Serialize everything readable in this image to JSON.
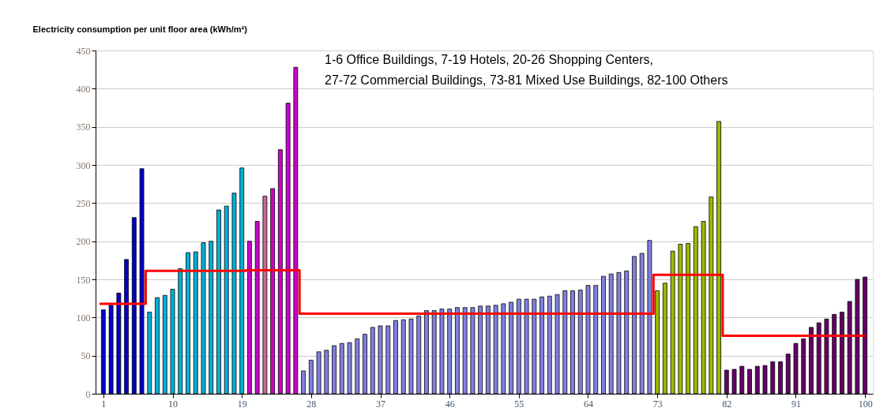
{
  "chart_data": {
    "type": "bar",
    "ylabel": "Electricity consumption per unit floor area (kWh/m²)",
    "annotations": [
      "1-6 Office Buildings, 7-19 Hotels, 20-26 Shopping Centers,",
      "27-72 Commercial Buildings, 73-81 Mixed Use Buildings, 82-100 Others"
    ],
    "x": [
      1,
      2,
      3,
      4,
      5,
      6,
      7,
      8,
      9,
      10,
      11,
      12,
      13,
      14,
      15,
      16,
      17,
      18,
      19,
      20,
      21,
      22,
      23,
      24,
      25,
      26,
      27,
      28,
      29,
      30,
      31,
      32,
      33,
      34,
      35,
      36,
      37,
      38,
      39,
      40,
      41,
      42,
      43,
      44,
      45,
      46,
      47,
      48,
      49,
      50,
      51,
      52,
      53,
      54,
      55,
      56,
      57,
      58,
      59,
      60,
      61,
      62,
      63,
      64,
      65,
      66,
      67,
      68,
      69,
      70,
      71,
      72,
      73,
      74,
      75,
      76,
      77,
      78,
      79,
      80,
      81,
      82,
      83,
      84,
      85,
      86,
      87,
      88,
      89,
      90,
      91,
      92,
      93,
      94,
      95,
      96,
      97,
      98,
      99,
      100
    ],
    "xlim": [
      0.5,
      100.5
    ],
    "xticks": [
      1,
      10,
      19,
      28,
      37,
      46,
      55,
      64,
      73,
      82,
      91,
      100
    ],
    "ylim": [
      0,
      450
    ],
    "yticks": [
      0,
      50,
      100,
      150,
      200,
      250,
      300,
      350,
      400,
      450
    ],
    "grid": "y",
    "series": [
      {
        "colors": [
          "#0000cc",
          "#0000cc",
          "#0000cc",
          "#0000cc",
          "#0000cc",
          "#0000cc",
          "#00b0d8",
          "#00b0d8",
          "#00b0d8",
          "#00b0d8",
          "#00b0d8",
          "#00b0d8",
          "#00b0d8",
          "#00b0d8",
          "#00b0d8",
          "#00b0d8",
          "#00b0d8",
          "#00b0d8",
          "#00b0d8",
          "#cc00cc",
          "#cc00cc",
          "#cc6699",
          "#cc00cc",
          "#cc00cc",
          "#cc00cc",
          "#cc00cc",
          "#8080e0",
          "#8080e0",
          "#8080e0",
          "#8080e0",
          "#8080e0",
          "#8080e0",
          "#8080e0",
          "#8080e0",
          "#8080e0",
          "#8080e0",
          "#8080e0",
          "#8080e0",
          "#8080e0",
          "#8080e0",
          "#8080e0",
          "#8080e0",
          "#8080e0",
          "#8080e0",
          "#8080e0",
          "#8080e0",
          "#8080e0",
          "#8080e0",
          "#8080e0",
          "#8080e0",
          "#8080e0",
          "#8080e0",
          "#8080e0",
          "#8080e0",
          "#8080e0",
          "#8080e0",
          "#8080e0",
          "#8080e0",
          "#8080e0",
          "#8080e0",
          "#8080e0",
          "#8080e0",
          "#8080e0",
          "#8080e0",
          "#8080e0",
          "#8080e0",
          "#8080e0",
          "#8080e0",
          "#8080e0",
          "#8080e0",
          "#8080e0",
          "#8080e0",
          "#99bb00",
          "#99bb00",
          "#99bb00",
          "#99bb00",
          "#99bb00",
          "#99bb00",
          "#99bb00",
          "#99bb00",
          "#99bb00",
          "#660066",
          "#660066",
          "#660066",
          "#660066",
          "#660066",
          "#660066",
          "#660066",
          "#660066",
          "#660066",
          "#660066",
          "#660066",
          "#660066",
          "#660066",
          "#660066",
          "#660066",
          "#660066",
          "#660066",
          "#660066",
          "#660066"
        ],
        "values": [
          110,
          116,
          132,
          176,
          231,
          295,
          107,
          126,
          129,
          137,
          164,
          185,
          186,
          198,
          200,
          241,
          246,
          263,
          296,
          200,
          226,
          259,
          269,
          320,
          381,
          428,
          30,
          44,
          55,
          57,
          63,
          66,
          67,
          72,
          78,
          87,
          89,
          89,
          96,
          97,
          98,
          102,
          109,
          109,
          111,
          111,
          113,
          113,
          113,
          115,
          115,
          116,
          118,
          120,
          124,
          124,
          124,
          127,
          128,
          130,
          135,
          135,
          136,
          142,
          142,
          154,
          157,
          159,
          161,
          180,
          184,
          201,
          135,
          145,
          187,
          196,
          197,
          219,
          226,
          258,
          357,
          31,
          32,
          36,
          32,
          36,
          37,
          42,
          42,
          52,
          66,
          72,
          87,
          93,
          98,
          104,
          107,
          121,
          150,
          153
        ]
      },
      {
        "type": "step",
        "color": "#ff0000",
        "x": [
          0.5,
          6.5,
          19.5,
          26.5,
          72.5,
          81.5,
          100
        ],
        "values": [
          118,
          161,
          162,
          105,
          156,
          76,
          76
        ]
      }
    ]
  }
}
